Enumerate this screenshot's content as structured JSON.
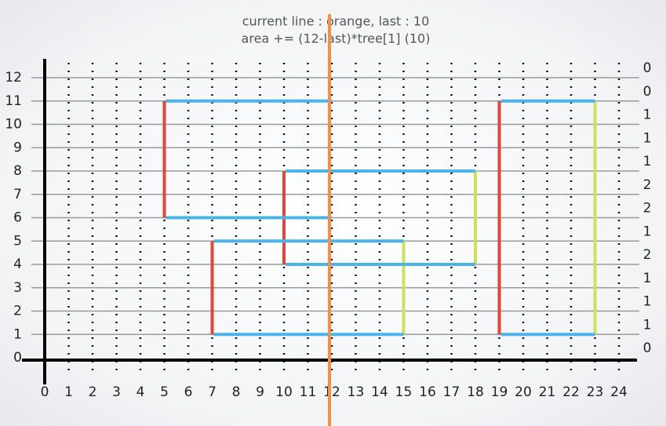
{
  "caption": [
    "current line : orange, last : 10",
    "area += (12-last)*tree[1] (10)"
  ],
  "x_labels": [
    0,
    1,
    2,
    3,
    4,
    5,
    6,
    7,
    8,
    9,
    10,
    11,
    12,
    13,
    14,
    15,
    16,
    17,
    18,
    19,
    20,
    21,
    22,
    23,
    24
  ],
  "y_labels": [
    0,
    1,
    2,
    3,
    4,
    5,
    6,
    7,
    8,
    9,
    10,
    11,
    12
  ],
  "counts": [
    0,
    0,
    1,
    1,
    1,
    2,
    2,
    1,
    2,
    1,
    1,
    1,
    0
  ],
  "sweep": {
    "x": 12,
    "color": "#f0904a"
  },
  "open_edges": {
    "color": "#e0463a",
    "segments": [
      [
        5,
        6,
        11
      ],
      [
        7,
        1,
        5
      ],
      [
        10,
        4,
        8
      ],
      [
        19,
        1,
        11
      ]
    ]
  },
  "close_edges": {
    "color": "#cfe05a",
    "segments": [
      [
        15,
        1,
        5
      ],
      [
        18,
        4,
        8
      ],
      [
        23,
        1,
        11
      ]
    ]
  },
  "horizontal_edges": {
    "color": "#4ab4e8",
    "segments": [
      [
        11,
        5,
        12
      ],
      [
        6,
        5,
        12
      ],
      [
        8,
        10,
        18
      ],
      [
        4,
        10,
        18
      ],
      [
        5,
        7,
        15
      ],
      [
        1,
        7,
        15
      ],
      [
        11,
        19,
        23
      ],
      [
        1,
        19,
        23
      ]
    ]
  }
}
